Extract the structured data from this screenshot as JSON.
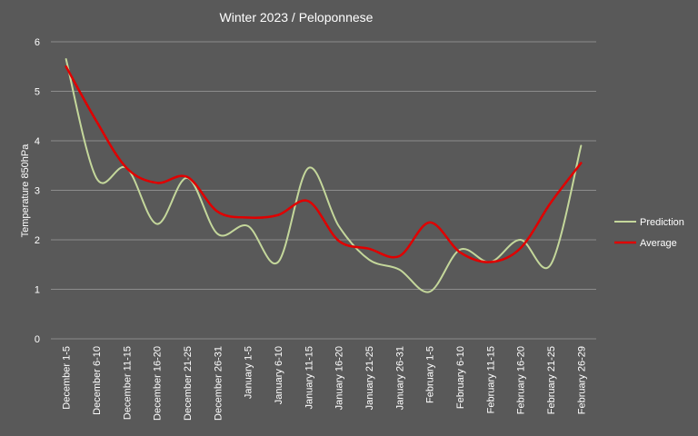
{
  "chart_data": {
    "type": "line",
    "title": "Winter 2023 /  Peloponnese",
    "xlabel": "",
    "ylabel": "Temperature  850hPa",
    "ylim": [
      0,
      6
    ],
    "yticks": [
      0,
      1,
      2,
      3,
      4,
      5,
      6
    ],
    "grid": true,
    "legend_position": "right",
    "categories": [
      "December 1-5",
      "December 6-10",
      "December 11-15",
      "December 16-20",
      "December 21-25",
      "December 26-31",
      "January 1-5",
      "January 6-10",
      "January 11-15",
      "January 16-20",
      "January 21-25",
      "January 26-31",
      "February 1-5",
      "February 6-10",
      "February 11-15",
      "February 16-20",
      "February 21-25",
      "February 26-29"
    ],
    "series": [
      {
        "name": "Prediction",
        "color": "#c4d79b",
        "values": [
          5.65,
          3.25,
          3.45,
          2.32,
          3.25,
          2.12,
          2.28,
          1.55,
          3.45,
          2.28,
          1.6,
          1.4,
          0.95,
          1.8,
          1.55,
          2.0,
          1.5,
          3.9
        ]
      },
      {
        "name": "Average",
        "color": "#e00000",
        "values": [
          5.5,
          4.4,
          3.45,
          3.15,
          3.27,
          2.57,
          2.45,
          2.5,
          2.78,
          1.98,
          1.82,
          1.67,
          2.35,
          1.75,
          1.55,
          1.83,
          2.75,
          3.55
        ]
      }
    ]
  }
}
